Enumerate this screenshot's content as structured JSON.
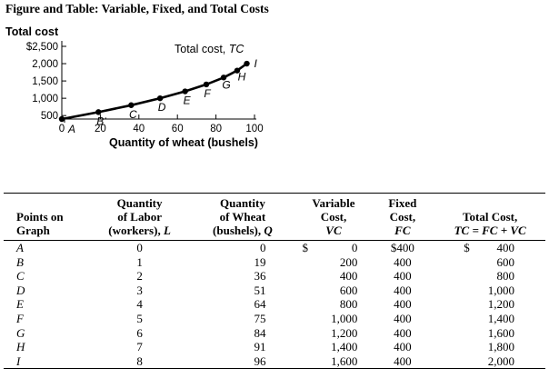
{
  "figure_title": "Figure and Table: Variable, Fixed, and Total Costs",
  "chart_data": {
    "type": "line",
    "ylabel": "Total cost",
    "xlabel": "Quantity of wheat (bushels)",
    "series_label": "Total cost, TC",
    "x_ticks": [
      "0",
      "20",
      "40",
      "60",
      "80",
      "100"
    ],
    "x_tick_values": [
      0,
      20,
      40,
      60,
      80,
      100
    ],
    "y_ticks": [
      "500",
      "1,000",
      "1,500",
      "2,000",
      "$2,500"
    ],
    "y_tick_values": [
      500,
      1000,
      1500,
      2000,
      2500
    ],
    "xlim": [
      0,
      100
    ],
    "ylim": [
      400,
      2500
    ],
    "grid": false,
    "legend": "none",
    "points": [
      {
        "label": "A",
        "x": 0,
        "y": 400
      },
      {
        "label": "B",
        "x": 19,
        "y": 600
      },
      {
        "label": "C",
        "x": 36,
        "y": 800
      },
      {
        "label": "D",
        "x": 51,
        "y": 1000
      },
      {
        "label": "E",
        "x": 64,
        "y": 1200
      },
      {
        "label": "F",
        "x": 75,
        "y": 1400
      },
      {
        "label": "G",
        "x": 84,
        "y": 1600
      },
      {
        "label": "H",
        "x": 91,
        "y": 1800
      },
      {
        "label": "I",
        "x": 96,
        "y": 2000
      }
    ],
    "line_color": "#000000"
  },
  "table": {
    "headers": {
      "points": [
        "Points on",
        "Graph"
      ],
      "labor": [
        "Quantity",
        "of Labor",
        "(workers), ",
        "L"
      ],
      "wheat": [
        "Quantity",
        "of Wheat",
        "(bushels), ",
        "Q"
      ],
      "vc": [
        "Variable",
        "Cost,",
        "VC"
      ],
      "fc": [
        "Fixed",
        "Cost,",
        "FC"
      ],
      "tc": [
        "Total Cost,",
        "TC = FC + VC"
      ]
    },
    "currency": "$",
    "rows": [
      {
        "point": "A",
        "labor": "0",
        "wheat": "0",
        "vc": "0",
        "fc": "$400",
        "tc": "400"
      },
      {
        "point": "B",
        "labor": "1",
        "wheat": "19",
        "vc": "200",
        "fc": "400",
        "tc": "600"
      },
      {
        "point": "C",
        "labor": "2",
        "wheat": "36",
        "vc": "400",
        "fc": "400",
        "tc": "800"
      },
      {
        "point": "D",
        "labor": "3",
        "wheat": "51",
        "vc": "600",
        "fc": "400",
        "tc": "1,000"
      },
      {
        "point": "E",
        "labor": "4",
        "wheat": "64",
        "vc": "800",
        "fc": "400",
        "tc": "1,200"
      },
      {
        "point": "F",
        "labor": "5",
        "wheat": "75",
        "vc": "1,000",
        "fc": "400",
        "tc": "1,400"
      },
      {
        "point": "G",
        "labor": "6",
        "wheat": "84",
        "vc": "1,200",
        "fc": "400",
        "tc": "1,600"
      },
      {
        "point": "H",
        "labor": "7",
        "wheat": "91",
        "vc": "1,400",
        "fc": "400",
        "tc": "1,800"
      },
      {
        "point": "I",
        "labor": "8",
        "wheat": "96",
        "vc": "1,600",
        "fc": "400",
        "tc": "2,000"
      }
    ]
  }
}
